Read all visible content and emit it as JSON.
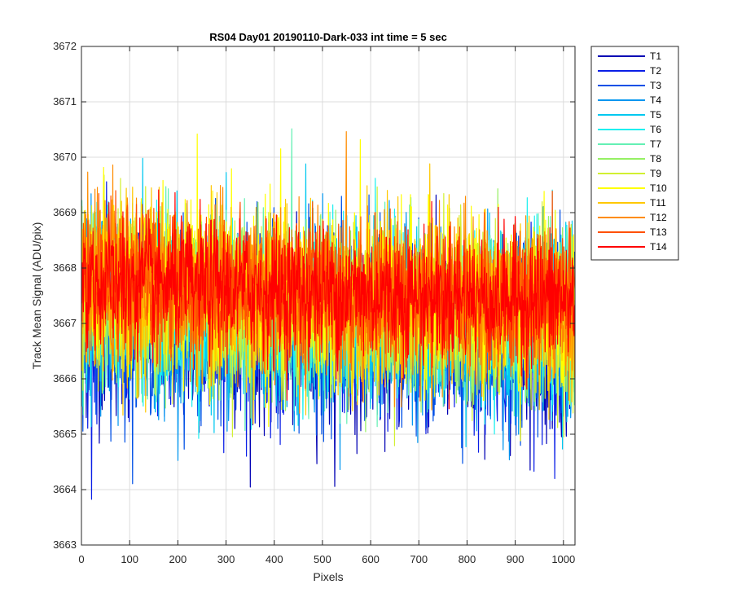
{
  "chart_data": {
    "type": "line",
    "title": "RS04 Day01 20190110-Dark-033 int time = 5 sec",
    "xlabel": "Pixels",
    "ylabel": "Track Mean Signal (ADU/pix)",
    "xlim": [
      0,
      1024
    ],
    "ylim": [
      3663,
      3672
    ],
    "xticks": [
      0,
      100,
      200,
      300,
      400,
      500,
      600,
      700,
      800,
      900,
      1000
    ],
    "yticks": [
      3663,
      3664,
      3665,
      3666,
      3667,
      3668,
      3669,
      3670,
      3671,
      3672
    ],
    "grid": true,
    "legend_position": "outside-top-right",
    "n_points": 1024,
    "series": [
      {
        "name": "T1",
        "color": "#0000b4",
        "mean": 3666.7,
        "std": 0.8
      },
      {
        "name": "T2",
        "color": "#0a1ee6",
        "mean": 3666.8,
        "std": 0.8
      },
      {
        "name": "T3",
        "color": "#0050e6",
        "mean": 3666.9,
        "std": 0.8
      },
      {
        "name": "T4",
        "color": "#0096f0",
        "mean": 3667.0,
        "std": 0.8
      },
      {
        "name": "T5",
        "color": "#00c8f0",
        "mean": 3667.1,
        "std": 0.75
      },
      {
        "name": "T6",
        "color": "#1ef0f0",
        "mean": 3667.1,
        "std": 0.75
      },
      {
        "name": "T7",
        "color": "#64f0b4",
        "mean": 3667.2,
        "std": 0.75
      },
      {
        "name": "T8",
        "color": "#96f064",
        "mean": 3667.2,
        "std": 0.75
      },
      {
        "name": "T9",
        "color": "#d2f032",
        "mean": 3667.3,
        "std": 0.75
      },
      {
        "name": "T10",
        "color": "#ffff00",
        "mean": 3667.4,
        "std": 0.8
      },
      {
        "name": "T11",
        "color": "#ffc800",
        "mean": 3667.4,
        "std": 0.75
      },
      {
        "name": "T12",
        "color": "#ff8c00",
        "mean": 3667.4,
        "std": 0.7
      },
      {
        "name": "T13",
        "color": "#ff5000",
        "mean": 3667.5,
        "std": 0.65
      },
      {
        "name": "T14",
        "color": "#ff0000",
        "mean": 3667.5,
        "std": 0.6
      }
    ]
  }
}
